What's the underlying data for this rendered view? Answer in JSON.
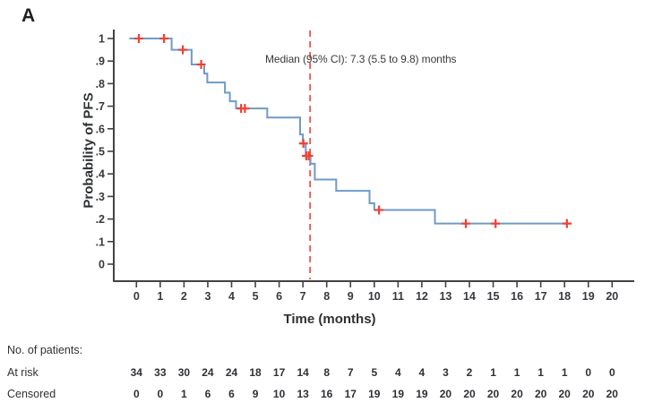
{
  "panel_label": "A",
  "chart_data": {
    "type": "line",
    "subtype": "kaplan-meier-step-curve",
    "title": "",
    "xlabel": "Time (months)",
    "ylabel": "Probability of PFS",
    "xlim": [
      0,
      20
    ],
    "ylim": [
      0,
      1
    ],
    "grid": "off",
    "legend": "none",
    "x_ticks": [
      0,
      1,
      2,
      3,
      4,
      5,
      6,
      7,
      8,
      9,
      10,
      11,
      12,
      13,
      14,
      15,
      16,
      17,
      18,
      19,
      20
    ],
    "y_ticks": [
      {
        "value": 0,
        "label": "0"
      },
      {
        "value": 0.1,
        "label": ".1"
      },
      {
        "value": 0.2,
        "label": ".2"
      },
      {
        "value": 0.3,
        "label": ".3"
      },
      {
        "value": 0.4,
        "label": ".4"
      },
      {
        "value": 0.5,
        "label": ".5"
      },
      {
        "value": 0.6,
        "label": ".6"
      },
      {
        "value": 0.7,
        "label": ".7"
      },
      {
        "value": 0.8,
        "label": ".8"
      },
      {
        "value": 0.9,
        "label": ".9"
      },
      {
        "value": 1,
        "label": "1"
      }
    ],
    "median_text": "Median (95% CI): 7.3 (5.5 to 9.8) months",
    "median_months": 7.3,
    "median_ci_low": 5.5,
    "median_ci_high": 9.8,
    "curve_start_x": -0.3,
    "curve_end_x": 18.3,
    "steps": [
      [
        0,
        1.0
      ],
      [
        1.48,
        0.95
      ],
      [
        2.32,
        0.885
      ],
      [
        2.85,
        0.845
      ],
      [
        2.98,
        0.805
      ],
      [
        3.72,
        0.76
      ],
      [
        3.93,
        0.722
      ],
      [
        4.19,
        0.69
      ],
      [
        5.5,
        0.65
      ],
      [
        6.88,
        0.575
      ],
      [
        7.0,
        0.535
      ],
      [
        7.12,
        0.48
      ],
      [
        7.32,
        0.445
      ],
      [
        7.5,
        0.375
      ],
      [
        8.4,
        0.325
      ],
      [
        9.8,
        0.27
      ],
      [
        10.0,
        0.24
      ],
      [
        12.55,
        0.18
      ]
    ],
    "censor_marks": [
      [
        0.1,
        1.0
      ],
      [
        1.16,
        1.0
      ],
      [
        1.95,
        0.95
      ],
      [
        2.72,
        0.885
      ],
      [
        4.4,
        0.69
      ],
      [
        4.56,
        0.69
      ],
      [
        7.02,
        0.535
      ],
      [
        7.14,
        0.48
      ],
      [
        7.24,
        0.48
      ],
      [
        10.2,
        0.24
      ],
      [
        13.85,
        0.18
      ],
      [
        15.1,
        0.18
      ],
      [
        18.1,
        0.18
      ]
    ],
    "colors": {
      "curve": "#6f9ac8",
      "censor": "#ef4136",
      "median_line": "#ef4136",
      "axis": "#414244",
      "tick_text": "#36393e"
    }
  },
  "risk_table": {
    "heading": "No. of patients:",
    "rows": [
      {
        "label": "At risk",
        "values": [
          34,
          33,
          30,
          24,
          24,
          18,
          17,
          14,
          8,
          7,
          5,
          4,
          4,
          3,
          2,
          1,
          1,
          1,
          1,
          0,
          0
        ]
      },
      {
        "label": "Censored",
        "values": [
          0,
          0,
          1,
          6,
          6,
          9,
          10,
          13,
          16,
          17,
          19,
          19,
          19,
          20,
          20,
          20,
          20,
          20,
          20,
          20,
          20
        ]
      }
    ]
  }
}
